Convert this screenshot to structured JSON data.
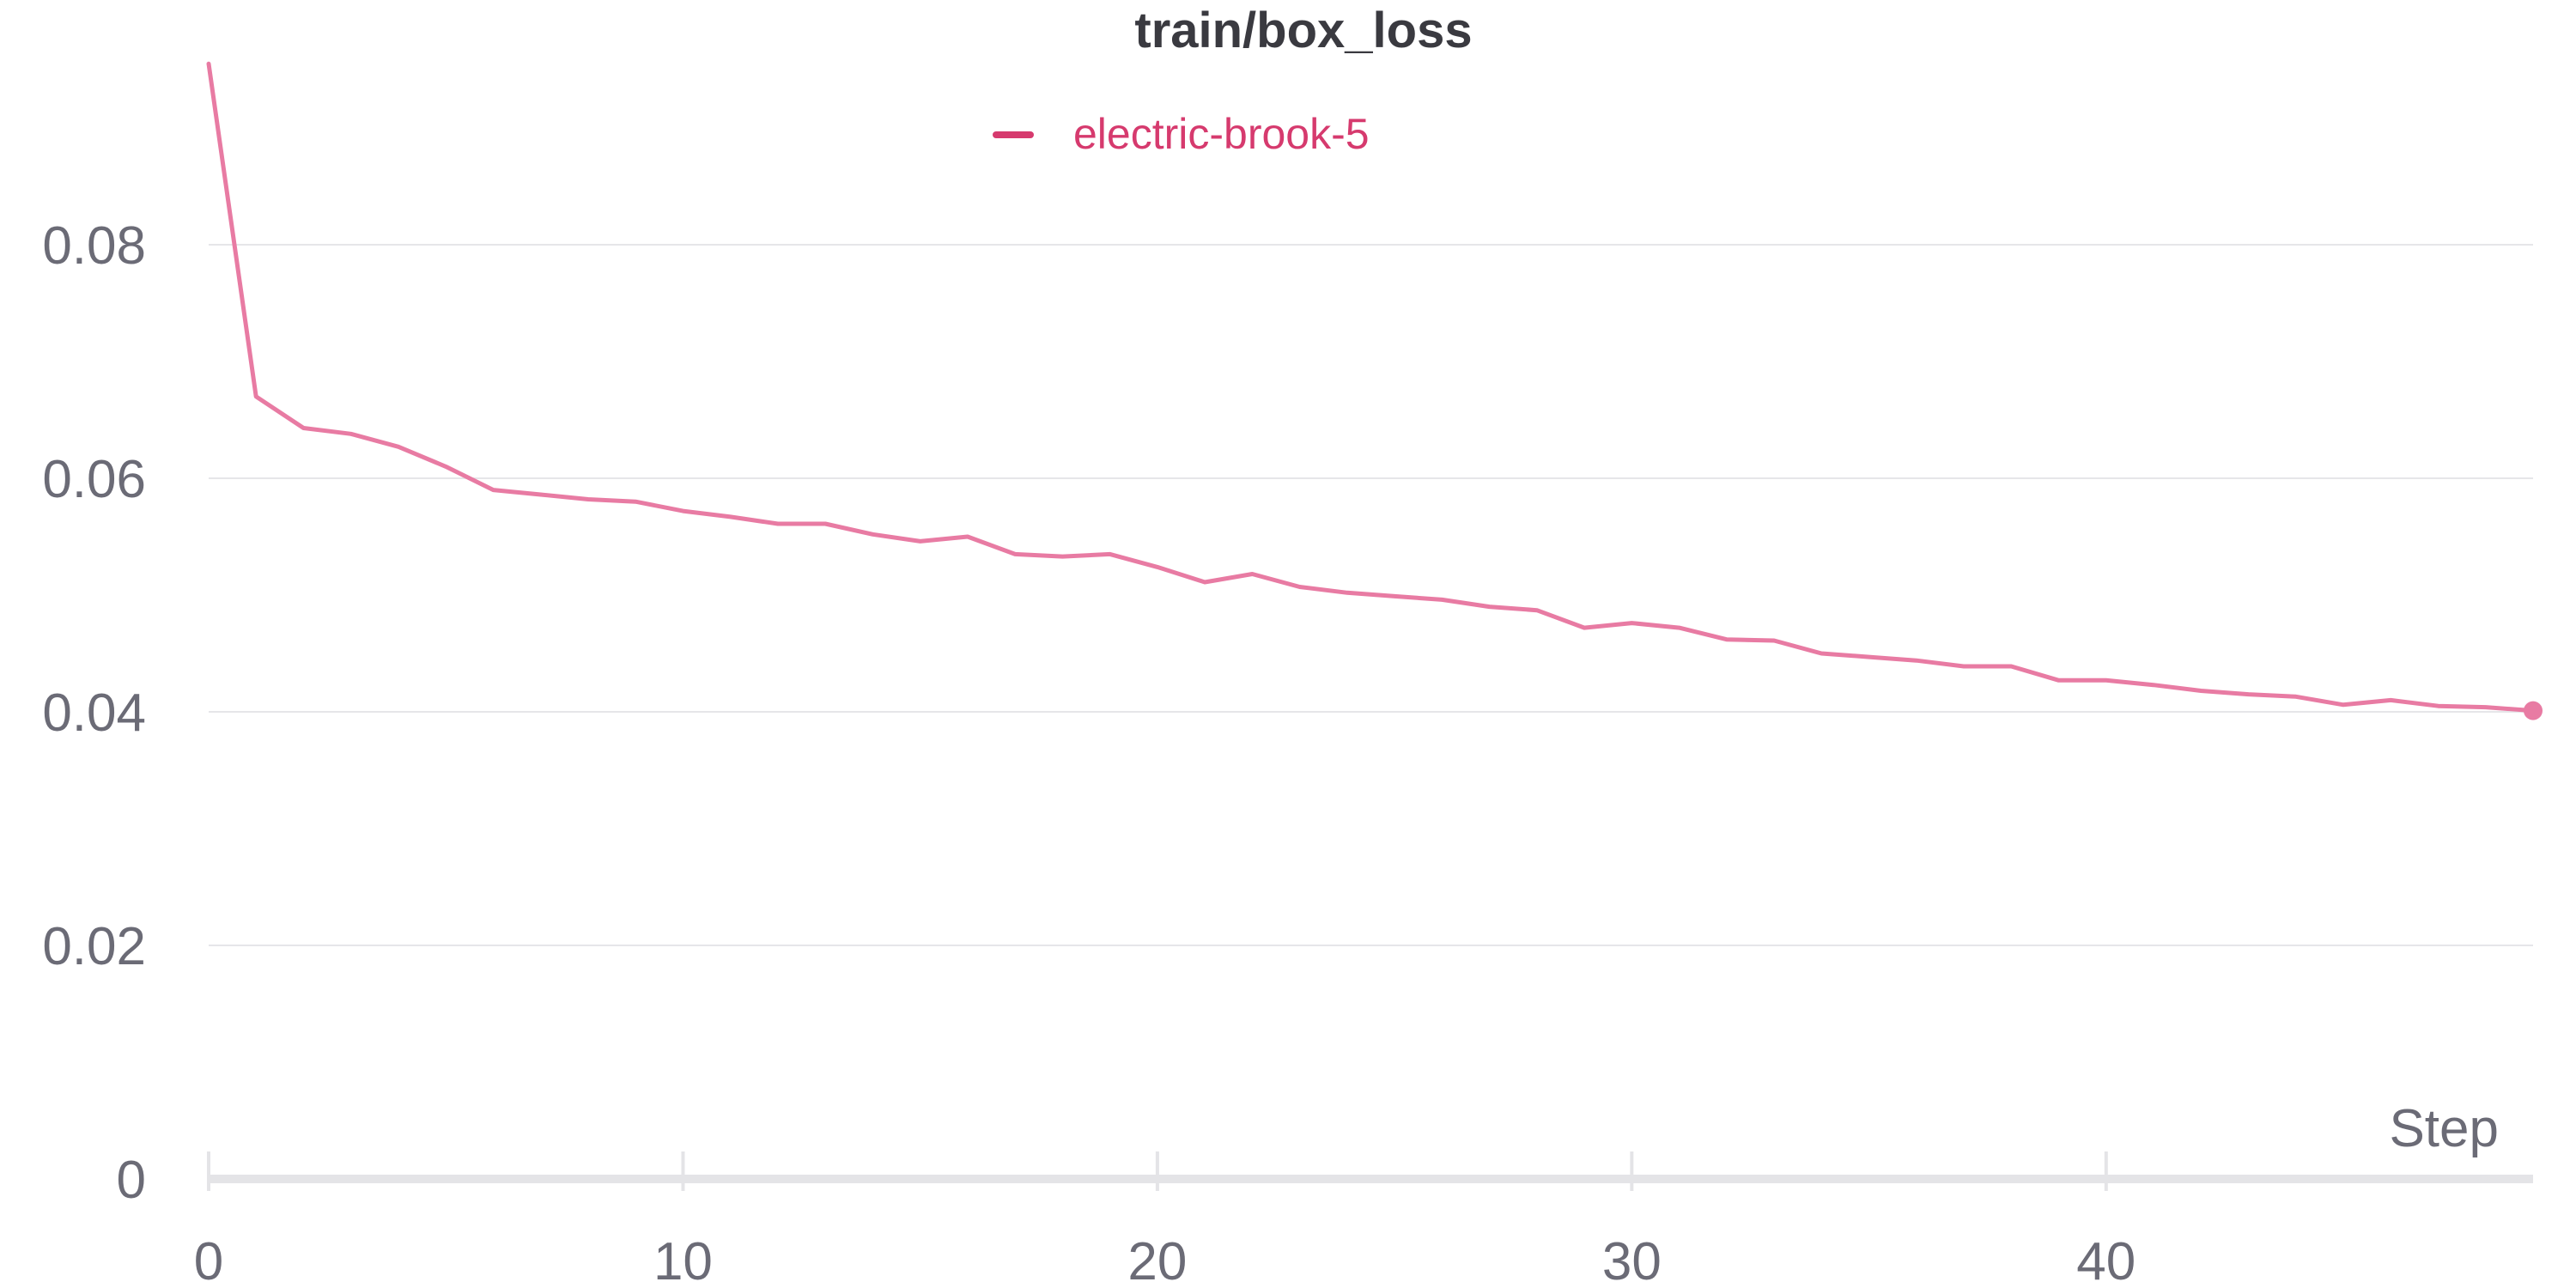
{
  "chart_data": {
    "type": "line",
    "title": "train/box_loss",
    "xlabel": "Step",
    "ylabel": "",
    "xlim": [
      0,
      49
    ],
    "ylim": [
      0,
      0.1
    ],
    "x_ticks": [
      0,
      10,
      20,
      30,
      40
    ],
    "y_ticks": [
      0,
      0.02,
      0.04,
      0.06,
      0.08
    ],
    "y_tick_labels": [
      "0",
      "0.02",
      "0.04",
      "0.06",
      "0.08"
    ],
    "x_tick_labels": [
      "0",
      "10",
      "20",
      "30",
      "40"
    ],
    "grid": true,
    "legend": "top-center",
    "series": [
      {
        "name": "electric-brook-5",
        "color": "#e87ba3",
        "legend_color": "#d63a6e",
        "x": [
          0,
          1,
          2,
          3,
          4,
          5,
          6,
          7,
          8,
          9,
          10,
          11,
          12,
          13,
          14,
          15,
          16,
          17,
          18,
          19,
          20,
          21,
          22,
          23,
          24,
          25,
          26,
          27,
          28,
          29,
          30,
          31,
          32,
          33,
          34,
          35,
          36,
          37,
          38,
          39,
          40,
          41,
          42,
          43,
          44,
          45,
          46,
          47,
          48,
          49
        ],
        "values": [
          0.0955,
          0.067,
          0.0643,
          0.0638,
          0.0627,
          0.061,
          0.059,
          0.0586,
          0.0582,
          0.058,
          0.0572,
          0.0567,
          0.0561,
          0.0561,
          0.0552,
          0.0546,
          0.055,
          0.0535,
          0.0533,
          0.0535,
          0.0524,
          0.0511,
          0.0518,
          0.0507,
          0.0502,
          0.0499,
          0.0496,
          0.049,
          0.0487,
          0.0472,
          0.0476,
          0.0472,
          0.0462,
          0.0461,
          0.045,
          0.0447,
          0.0444,
          0.0439,
          0.0439,
          0.0427,
          0.0427,
          0.0423,
          0.0418,
          0.0415,
          0.0413,
          0.0406,
          0.041,
          0.0405,
          0.0404,
          0.0401
        ]
      }
    ]
  }
}
